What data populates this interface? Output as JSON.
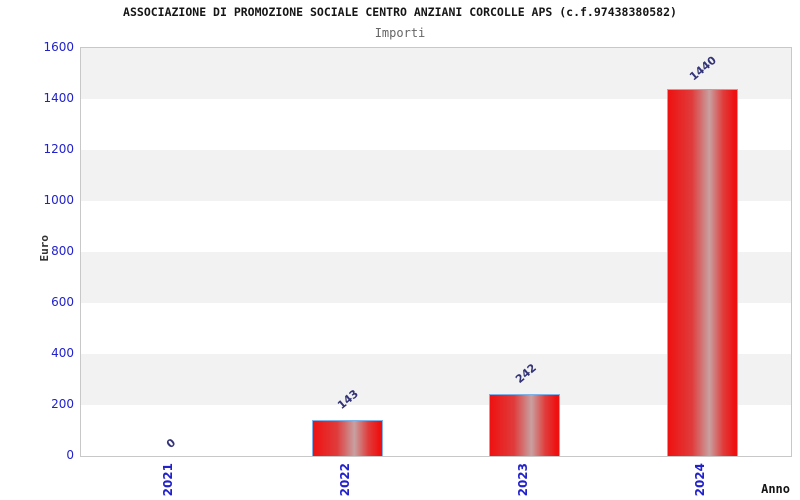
{
  "chart_data": {
    "type": "bar",
    "title": "ASSOCIAZIONE DI PROMOZIONE SOCIALE CENTRO ANZIANI CORCOLLE APS (c.f.97438380582)",
    "subtitle": "Importi",
    "xlabel": "Anno",
    "ylabel": "Euro",
    "categories": [
      "2021",
      "2022",
      "2023",
      "2024"
    ],
    "values": [
      0,
      143,
      242,
      1440
    ],
    "value_labels": [
      "0",
      "143",
      "242",
      "1440"
    ],
    "ylim": [
      0,
      1600
    ],
    "ytick_step": 200,
    "ytick_labels": [
      "0",
      "200",
      "400",
      "600",
      "800",
      "1000",
      "1200",
      "1400",
      "1600"
    ],
    "legend_position": "none",
    "grid": "alternating-horizontal-bands",
    "colors": {
      "bar_red": "#ee1111",
      "bar_red_soft": "#e03c3c",
      "bar_mid": "#c8a0a0",
      "bar_border": "#7fb2e8",
      "tick_label": "#2222cc",
      "value_label": "#333377",
      "band_gray": "#f2f2f2",
      "band_white": "#ffffff",
      "plot_border": "#c8c8c8",
      "title": "#151515",
      "subtitle": "#666666",
      "axis_title": "#333333"
    }
  }
}
